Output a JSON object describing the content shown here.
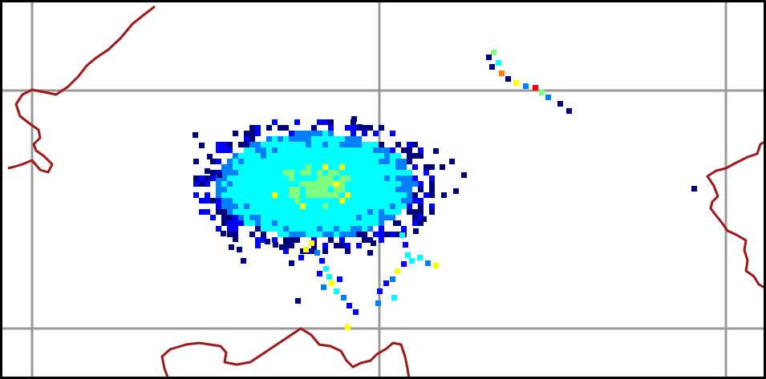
{
  "map": {
    "background": "#ffffff",
    "grid_color": "#9a9a9a",
    "border_color": "#a01818",
    "frame_color": "#000000",
    "colormap": [
      "#00007f",
      "#0000ff",
      "#007fff",
      "#00ffff",
      "#7fff7f",
      "#ffff00",
      "#ff7f00",
      "#ff0000"
    ],
    "features": [
      {
        "name": "country-border",
        "color": "#a01818"
      },
      {
        "name": "intensity-cluster-main",
        "peak_level": 0.6
      },
      {
        "name": "intensity-cluster-plume",
        "peak_level": 0.7
      },
      {
        "name": "scattered-pixels",
        "peak_level": 0.9
      }
    ]
  }
}
